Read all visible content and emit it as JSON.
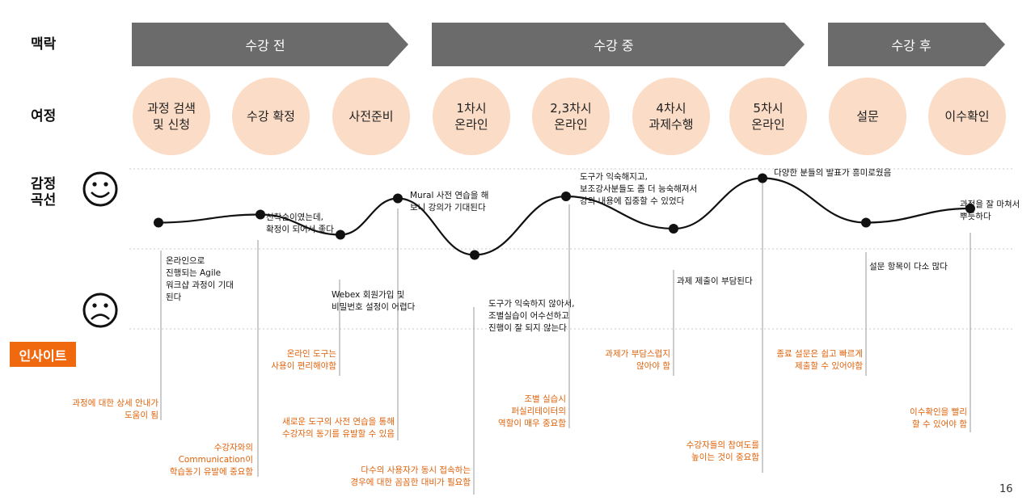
{
  "row_labels": {
    "context": "맥락",
    "journey": "여정",
    "emotion_line1": "감정",
    "emotion_line2": "곡선",
    "insight": "인사이트"
  },
  "phases": [
    "수강 전",
    "수강 중",
    "수강 후"
  ],
  "journey": [
    "과정 검색\n및 신청",
    "수강 확정",
    "사전준비",
    "1차시\n온라인",
    "2,3차시\n온라인",
    "4차시\n과제수행",
    "5차시\n온라인",
    "설문",
    "이수확인"
  ],
  "emotion_notes": [
    "온라인으로\n진행되는 Agile\n워크샵 과정이 기대\n된다",
    "선착순이였는데,\n확정이 되어서 좋다",
    "Webex 회원가입 및\n비밀번호 설정이 어렵다",
    "Mural 사전 연습을 해\n보니 강의가 기대된다",
    "도구가 익숙하지 않아서,\n조별실습이 어수선하고\n진행이 잘 되지 않는다",
    "도구가 익숙해지고,\n보조강사분들도 좀 더 능숙해져서\n강의 내용에 집중할 수 있었다",
    "과제 제출이 부담된다",
    "다양한 분들의 발표가 흥미로웠음",
    "설문 항목이 다소 많다",
    "과정을 잘 마쳐서\n뿌듯하다"
  ],
  "insights": [
    "과정에 대한 상세 안내가\n도움이 됨",
    "수강자와의\nCommunication이\n학습동기 유발에 중요함",
    "온라인 도구는\n사용이 편리해야함",
    "새로운 도구의 사전 연습을 통해\n수강자의 동기를 유발할 수 있음",
    "다수의 사용자가 동시 접속하는\n경우에 대한 꼼꼼한 대비가 필요함",
    "조별 실습시\n퍼실리테이터의\n역할이 매우 중요함",
    "과제가 부담스럽지\n않아야 함",
    "수강자들의 참여도를\n높이는 것이 중요함",
    "종료 설문은 쉽고 빠르게\n제출할 수 있어야함",
    "이수확인을 빨리\n할 수 있어야 함"
  ],
  "page_number": "16",
  "colors": {
    "phase_arrow": "#6b6b6b",
    "journey_circle": "#fbdcc6",
    "insight_text": "#e0620b",
    "insight_badge": "#f0690f"
  },
  "icons": [
    "smiley-happy-icon",
    "smiley-sad-icon"
  ],
  "emotion_levels": [
    0.65,
    0.85,
    0.35,
    1.25,
    -0.15,
    1.3,
    0.5,
    1.75,
    0.65,
    1.0
  ]
}
